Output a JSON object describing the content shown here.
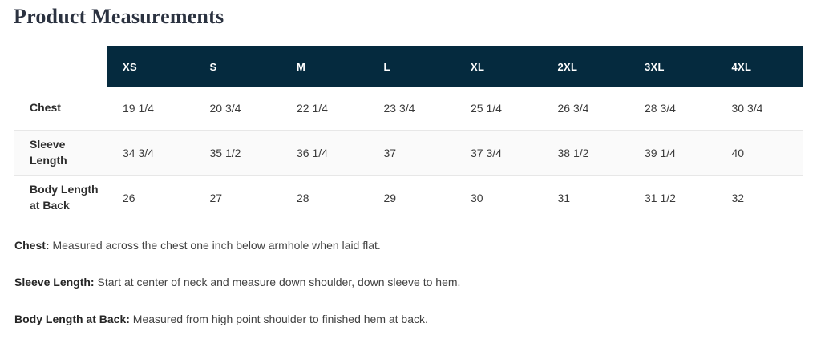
{
  "page": {
    "title": "Product Measurements"
  },
  "colors": {
    "header_bg": "#052a3e",
    "header_text": "#ffffff",
    "row_divider": "#e7e7e7",
    "title_text": "#2b3240"
  },
  "table": {
    "size_headers": [
      "XS",
      "S",
      "M",
      "L",
      "XL",
      "2XL",
      "3XL",
      "4XL"
    ],
    "rows": [
      {
        "label": "Chest",
        "values": [
          "19 1/4",
          "20 3/4",
          "22 1/4",
          "23 3/4",
          "25 1/4",
          "26 3/4",
          "28 3/4",
          "30 3/4"
        ]
      },
      {
        "label": "Sleeve Length",
        "values": [
          "34 3/4",
          "35 1/2",
          "36 1/4",
          "37",
          "37 3/4",
          "38 1/2",
          "39 1/4",
          "40"
        ]
      },
      {
        "label": "Body Length at Back",
        "values": [
          "26",
          "27",
          "28",
          "29",
          "30",
          "31",
          "31 1/2",
          "32"
        ]
      }
    ]
  },
  "footnotes": [
    {
      "term": "Chest:",
      "text": "Measured across the chest one inch below armhole when laid flat."
    },
    {
      "term": "Sleeve Length:",
      "text": "Start at center of neck and measure down shoulder, down sleeve to hem."
    },
    {
      "term": "Body Length at Back:",
      "text": "Measured from high point shoulder to finished hem at back."
    }
  ]
}
